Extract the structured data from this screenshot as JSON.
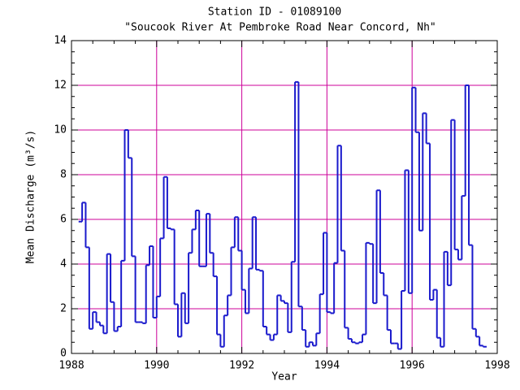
{
  "chart_data": {
    "type": "step",
    "title": "Station ID - 01089100",
    "subtitle": "\"Soucook River At Pembroke Road Near Concord, Nh\"",
    "x_label": "Year",
    "y_label": "Mean Discharge (m³/s)",
    "xlim": [
      1988,
      1998
    ],
    "xticks": [
      1988,
      1990,
      1992,
      1994,
      1996,
      1998
    ],
    "ylim": [
      0,
      14
    ],
    "yticks": [
      0,
      2,
      4,
      6,
      8,
      10,
      12,
      14
    ],
    "grid": true,
    "grid_color": "#cc0099",
    "series": [
      {
        "color": "#1a1acc",
        "x": [
          1988.167,
          1988.25,
          1988.333,
          1988.417,
          1988.5,
          1988.583,
          1988.667,
          1988.75,
          1988.833,
          1988.917,
          1989,
          1989.083,
          1989.167,
          1989.25,
          1989.333,
          1989.417,
          1989.5,
          1989.583,
          1989.667,
          1989.75,
          1989.833,
          1989.917,
          1990,
          1990.083,
          1990.167,
          1990.25,
          1990.333,
          1990.417,
          1990.5,
          1990.583,
          1990.667,
          1990.75,
          1990.833,
          1990.917,
          1991,
          1991.083,
          1991.167,
          1991.25,
          1991.333,
          1991.417,
          1991.5,
          1991.583,
          1991.667,
          1991.75,
          1991.833,
          1991.917,
          1992,
          1992.083,
          1992.167,
          1992.25,
          1992.333,
          1992.417,
          1992.5,
          1992.583,
          1992.667,
          1992.75,
          1992.833,
          1992.917,
          1993,
          1993.083,
          1993.167,
          1993.25,
          1993.333,
          1993.417,
          1993.5,
          1993.583,
          1993.667,
          1993.75,
          1993.833,
          1993.917,
          1994,
          1994.083,
          1994.167,
          1994.25,
          1994.333,
          1994.417,
          1994.5,
          1994.583,
          1994.667,
          1994.75,
          1994.833,
          1994.917,
          1995,
          1995.083,
          1995.167,
          1995.25,
          1995.333,
          1995.417,
          1995.5,
          1995.583,
          1995.667,
          1995.75,
          1995.833,
          1995.917,
          1996,
          1996.083,
          1996.167,
          1996.25,
          1996.333,
          1996.417,
          1996.5,
          1996.583,
          1996.667,
          1996.75,
          1996.833,
          1996.917,
          1997,
          1997.083,
          1997.167,
          1997.25,
          1997.333,
          1997.417,
          1997.5,
          1997.583,
          1997.667
        ],
        "values": [
          5.9,
          6.75,
          4.75,
          1.1,
          1.85,
          1.4,
          1.25,
          0.9,
          4.45,
          2.3,
          1.0,
          1.2,
          4.15,
          10.0,
          8.75,
          4.35,
          1.4,
          1.4,
          1.35,
          3.95,
          4.8,
          1.6,
          2.55,
          5.15,
          7.9,
          5.6,
          5.55,
          2.2,
          0.75,
          2.7,
          1.35,
          4.5,
          5.55,
          6.4,
          3.9,
          3.9,
          6.25,
          4.5,
          3.45,
          0.85,
          0.3,
          1.7,
          2.6,
          4.75,
          6.1,
          4.6,
          2.85,
          1.8,
          3.8,
          6.1,
          3.75,
          3.7,
          1.2,
          0.85,
          0.6,
          0.85,
          2.6,
          2.35,
          2.25,
          0.95,
          4.1,
          12.15,
          2.1,
          1.05,
          0.3,
          0.5,
          0.35,
          0.9,
          2.65,
          5.4,
          1.85,
          1.8,
          4.05,
          9.3,
          4.6,
          1.15,
          0.65,
          0.5,
          0.45,
          0.5,
          0.85,
          4.95,
          4.9,
          2.25,
          7.3,
          3.6,
          2.6,
          1.05,
          0.45,
          0.45,
          0.2,
          2.8,
          8.2,
          2.7,
          11.9,
          9.9,
          5.5,
          10.75,
          9.4,
          2.4,
          2.85,
          0.7,
          0.3,
          4.55,
          3.05,
          10.45,
          4.65,
          4.2,
          7.05,
          12.0,
          4.85,
          1.1,
          0.75,
          0.35,
          0.3
        ]
      }
    ]
  }
}
